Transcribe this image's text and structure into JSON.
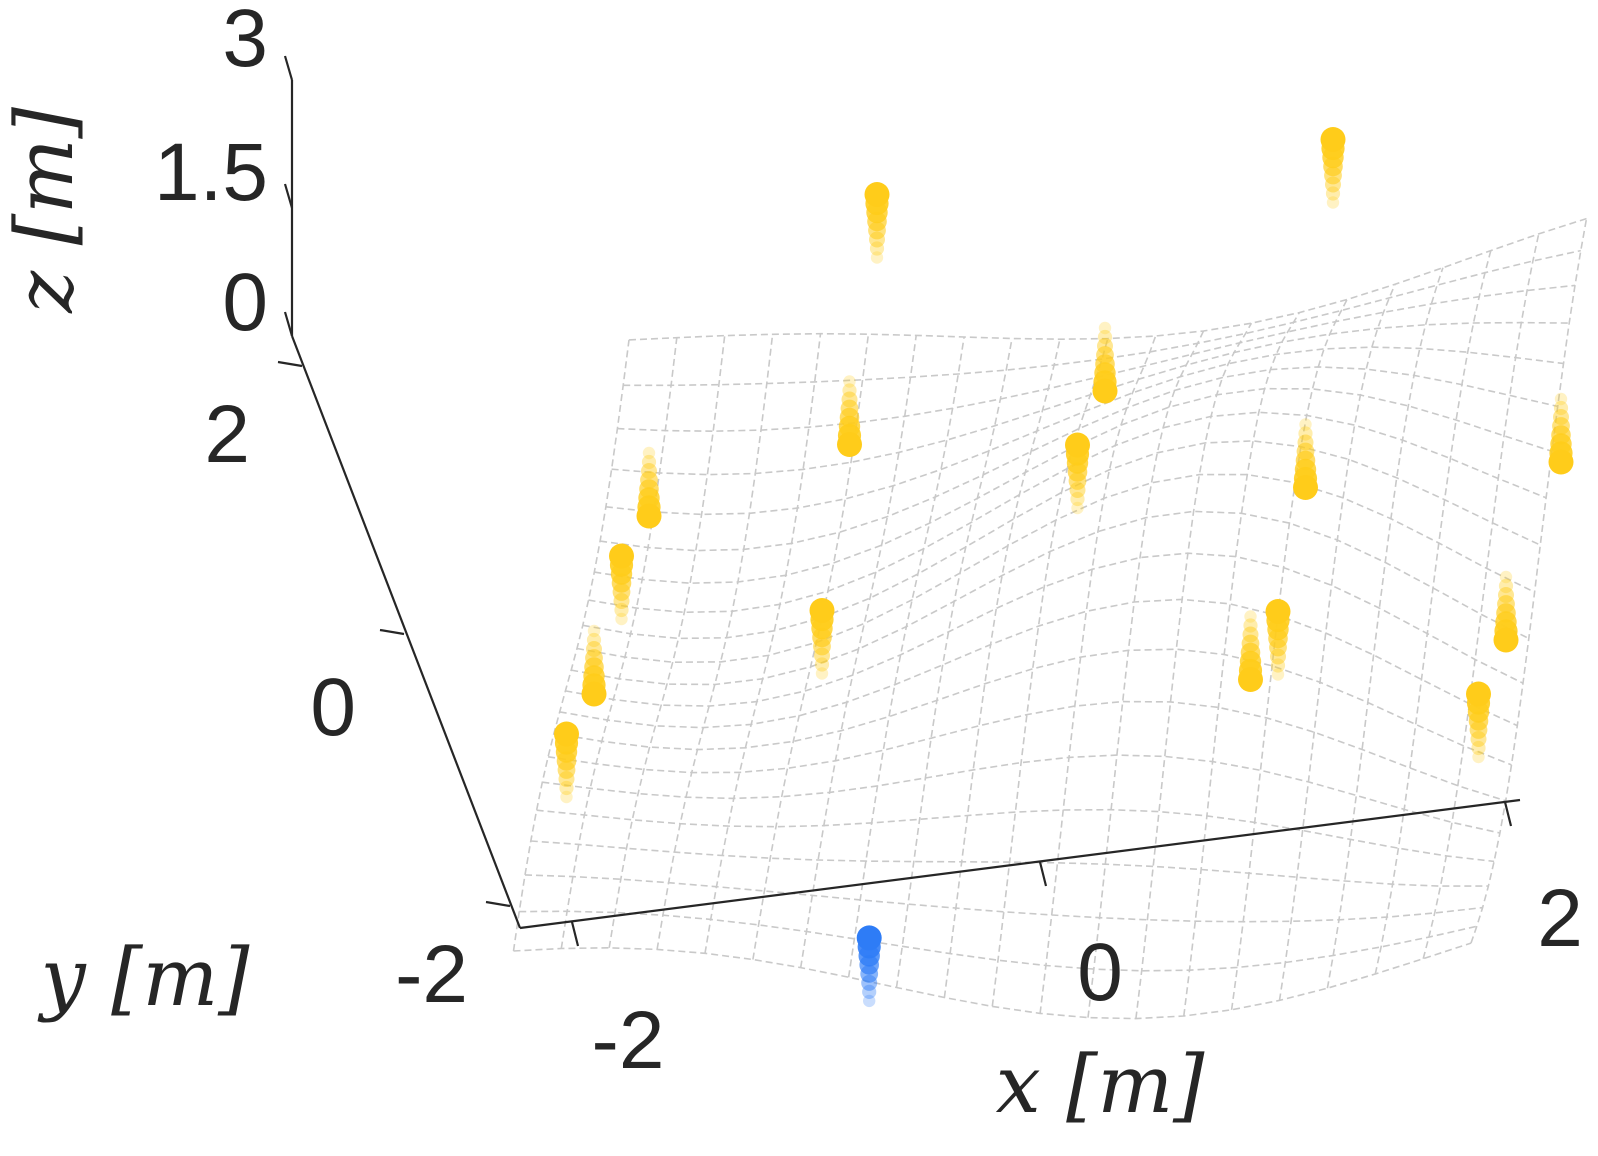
{
  "chart_data": {
    "type": "scatter3d",
    "title": "",
    "xlabel": "x [m]",
    "ylabel": "y [m]",
    "zlabel": "z [m]",
    "xlim": [
      -2.5,
      2.5
    ],
    "ylim": [
      -2.5,
      2.5
    ],
    "zlim": [
      0,
      3
    ],
    "xticks": [
      "-2",
      "0",
      "2"
    ],
    "yticks": [
      "-2",
      "0",
      "2"
    ],
    "zticks": [
      "0",
      "1.5",
      "3"
    ],
    "grid": false,
    "legend": "none",
    "surface": {
      "style": "dashed-wireframe",
      "color": "#c8c8c8",
      "x_range": [
        -2.1,
        2.1
      ],
      "y_range": [
        -2.1,
        2.1
      ],
      "samples": 21
    },
    "series": [
      {
        "color": "#ffcc1a",
        "points": [
          {
            "x": -2,
            "y": 2,
            "z": 0.0
          },
          {
            "x": -1,
            "y": 2,
            "z": 2.2
          },
          {
            "x": 0,
            "y": 2,
            "z": 0.7
          },
          {
            "x": 1,
            "y": 2,
            "z": 2.4
          },
          {
            "x": 2,
            "y": 2,
            "z": 0.0
          },
          {
            "x": -2,
            "y": 1,
            "z": 0.7
          },
          {
            "x": -1,
            "y": 1,
            "z": 1.4
          },
          {
            "x": 0,
            "y": 1,
            "z": 1.3
          },
          {
            "x": 1,
            "y": 1,
            "z": 0.9
          },
          {
            "x": -2,
            "y": 0,
            "z": 0.7
          },
          {
            "x": -1,
            "y": 0,
            "z": 1.2
          },
          {
            "x": 1,
            "y": 0,
            "z": 1.0
          },
          {
            "x": 2,
            "y": 0,
            "z": 0.7
          },
          {
            "x": -2,
            "y": -1,
            "z": 1.4
          },
          {
            "x": 1,
            "y": -1,
            "z": 1.5
          },
          {
            "x": 2,
            "y": -1,
            "z": 1.3
          }
        ]
      },
      {
        "color": "#2e7cf6",
        "points": [
          {
            "x": -0.6,
            "y": -1.6,
            "z": 0.4
          }
        ]
      }
    ]
  }
}
